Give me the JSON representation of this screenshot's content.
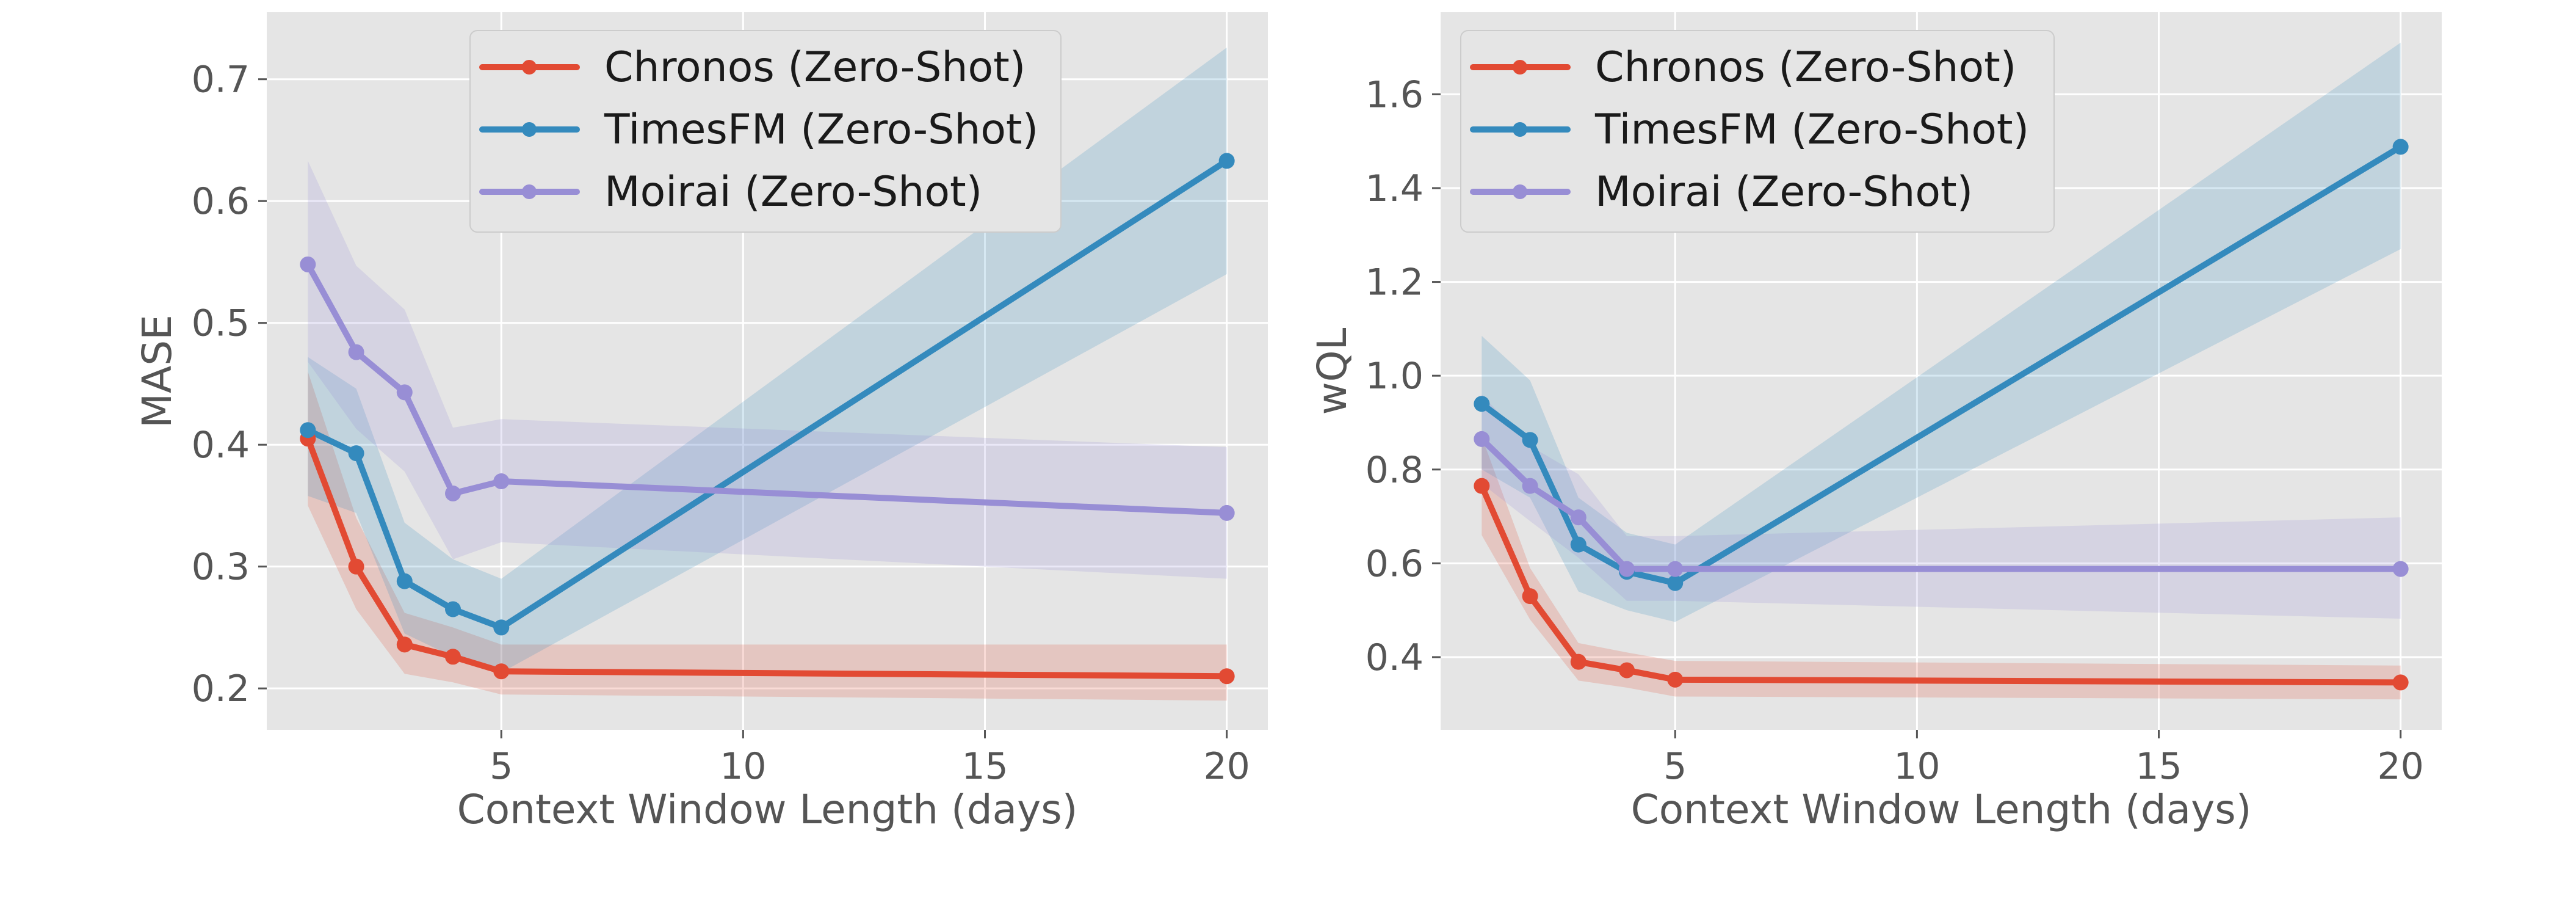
{
  "colors": {
    "panel_bg": "#E5E5E5",
    "grid": "#FFFFFF",
    "tick_text": "#555555",
    "label_text": "#555555",
    "legend_text": "#1A1A1A"
  },
  "legend": {
    "entries": [
      {
        "name": "Chronos (Zero-Shot)",
        "color": "#E24A33"
      },
      {
        "name": "TimesFM (Zero-Shot)",
        "color": "#348ABD"
      },
      {
        "name": "Moirai (Zero-Shot)",
        "color": "#988ED5"
      }
    ]
  },
  "chart_data": [
    {
      "type": "line",
      "title": "",
      "xlabel": "Context Window Length (days)",
      "ylabel": "MASE",
      "xlim": [
        0.15,
        20.85
      ],
      "ylim": [
        0.166,
        0.755
      ],
      "xticks": [
        5,
        10,
        15,
        20
      ],
      "xtick_labels": [
        "5",
        "10",
        "15",
        "20"
      ],
      "yticks": [
        0.2,
        0.3,
        0.4,
        0.5,
        0.6,
        0.7
      ],
      "ytick_labels": [
        "0.2",
        "0.3",
        "0.4",
        "0.5",
        "0.6",
        "0.7"
      ],
      "grid": true,
      "legend_position": "top-center",
      "x": [
        1,
        2,
        3,
        4,
        5,
        20
      ],
      "series": [
        {
          "name": "Chronos (Zero-Shot)",
          "color": "#E24A33",
          "values": [
            0.405,
            0.3,
            0.236,
            0.226,
            0.214,
            0.21
          ],
          "lower": [
            0.35,
            0.265,
            0.212,
            0.205,
            0.195,
            0.19
          ],
          "upper": [
            0.46,
            0.34,
            0.262,
            0.25,
            0.236,
            0.236
          ]
        },
        {
          "name": "TimesFM (Zero-Shot)",
          "color": "#348ABD",
          "values": [
            0.412,
            0.393,
            0.288,
            0.265,
            0.25,
            0.633
          ],
          "lower": [
            0.358,
            0.344,
            0.245,
            0.226,
            0.213,
            0.54
          ],
          "upper": [
            0.472,
            0.446,
            0.336,
            0.306,
            0.29,
            0.726
          ]
        },
        {
          "name": "Moirai (Zero-Shot)",
          "color": "#988ED5",
          "values": [
            0.548,
            0.476,
            0.443,
            0.36,
            0.37,
            0.344
          ],
          "lower": [
            0.468,
            0.413,
            0.378,
            0.306,
            0.32,
            0.29
          ],
          "upper": [
            0.633,
            0.547,
            0.511,
            0.414,
            0.421,
            0.398
          ]
        }
      ]
    },
    {
      "type": "line",
      "title": "",
      "xlabel": "Context Window Length (days)",
      "ylabel": "wQL",
      "xlim": [
        0.15,
        20.85
      ],
      "ylim": [
        0.245,
        1.775
      ],
      "xticks": [
        5,
        10,
        15,
        20
      ],
      "xtick_labels": [
        "5",
        "10",
        "15",
        "20"
      ],
      "yticks": [
        0.4,
        0.6,
        0.8,
        1.0,
        1.2,
        1.4,
        1.6
      ],
      "ytick_labels": [
        "0.4",
        "0.6",
        "0.8",
        "1.0",
        "1.2",
        "1.4",
        "1.6"
      ],
      "grid": true,
      "legend_position": "top-left",
      "x": [
        1,
        2,
        3,
        4,
        5,
        20
      ],
      "series": [
        {
          "name": "Chronos (Zero-Shot)",
          "color": "#E24A33",
          "values": [
            0.765,
            0.53,
            0.39,
            0.372,
            0.352,
            0.346
          ],
          "lower": [
            0.66,
            0.48,
            0.35,
            0.335,
            0.316,
            0.31
          ],
          "upper": [
            0.87,
            0.59,
            0.43,
            0.41,
            0.392,
            0.382
          ]
        },
        {
          "name": "TimesFM (Zero-Shot)",
          "color": "#348ABD",
          "values": [
            0.94,
            0.863,
            0.64,
            0.582,
            0.558,
            1.488
          ],
          "lower": [
            0.8,
            0.74,
            0.54,
            0.5,
            0.475,
            1.27
          ],
          "upper": [
            1.085,
            0.99,
            0.74,
            0.665,
            0.64,
            1.71
          ]
        },
        {
          "name": "Moirai (Zero-Shot)",
          "color": "#988ED5",
          "values": [
            0.865,
            0.765,
            0.698,
            0.588,
            0.588,
            0.588
          ],
          "lower": [
            0.77,
            0.69,
            0.612,
            0.52,
            0.52,
            0.482
          ],
          "upper": [
            0.96,
            0.85,
            0.79,
            0.658,
            0.658,
            0.698
          ]
        }
      ]
    }
  ]
}
